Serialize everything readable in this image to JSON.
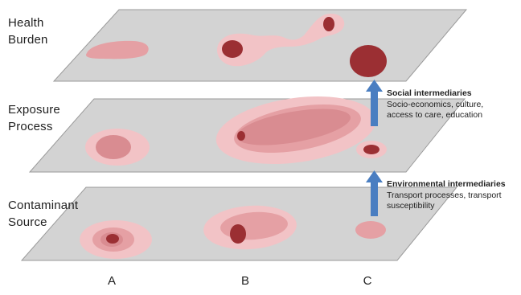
{
  "layers": [
    {
      "label_line1": "Health",
      "label_line2": "Burden"
    },
    {
      "label_line1": "Exposure",
      "label_line2": "Process"
    },
    {
      "label_line1": "Contaminant",
      "label_line2": "Source"
    }
  ],
  "columns": [
    "A",
    "B",
    "C"
  ],
  "intermediaries": {
    "social": {
      "title": "Social intermediaries",
      "line1": "Socio-economics, culture,",
      "line2": "access to care, education"
    },
    "environmental": {
      "title": "Environmental intermediaries",
      "line1": "Transport processes, transport",
      "line2": "susceptibility"
    }
  },
  "colors": {
    "plane_fill": "#d3d3d3",
    "plane_stroke": "#9a9a9a",
    "light_pink": "#f2c3c6",
    "mid_pink": "#e5a0a4",
    "rose": "#d98c91",
    "dark_red": "#9b2f33",
    "arrow_blue": "#4a7ec1"
  }
}
